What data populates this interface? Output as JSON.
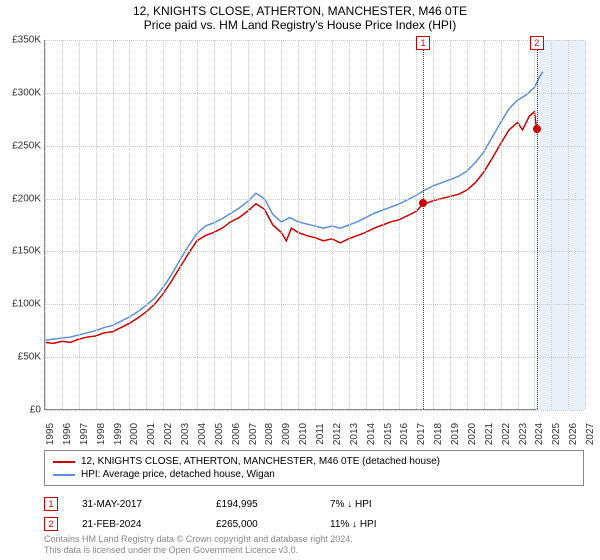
{
  "title": "12, KNIGHTS CLOSE, ATHERTON, MANCHESTER, M46 0TE",
  "subtitle": "Price paid vs. HM Land Registry's House Price Index (HPI)",
  "chart": {
    "type": "line",
    "background_color": "#ffffff",
    "grid_color": "#cccccc",
    "axis_color": "#888888",
    "highlight_band": {
      "x_from": 2024.14,
      "x_to": 2027,
      "color": "#eaf0fa"
    },
    "xlim": [
      1995,
      2027
    ],
    "ylim": [
      0,
      350000
    ],
    "yticks": [
      0,
      50000,
      100000,
      150000,
      200000,
      250000,
      300000,
      350000
    ],
    "ytick_labels": [
      "£0",
      "£50K",
      "£100K",
      "£150K",
      "£200K",
      "£250K",
      "£300K",
      "£350K"
    ],
    "xticks": [
      1995,
      1996,
      1997,
      1998,
      1999,
      2000,
      2001,
      2002,
      2003,
      2004,
      2005,
      2006,
      2007,
      2008,
      2009,
      2010,
      2011,
      2012,
      2013,
      2014,
      2015,
      2016,
      2017,
      2018,
      2019,
      2020,
      2021,
      2022,
      2023,
      2024,
      2025,
      2026,
      2027
    ],
    "series": [
      {
        "name": "12, KNIGHTS CLOSE, ATHERTON, MANCHESTER, M46 0TE (detached house)",
        "color": "#cc0000",
        "line_width": 1.5,
        "data": [
          [
            1995,
            64000
          ],
          [
            1995.5,
            63000
          ],
          [
            1996,
            65000
          ],
          [
            1996.5,
            64000
          ],
          [
            1997,
            67000
          ],
          [
            1997.5,
            69000
          ],
          [
            1998,
            70000
          ],
          [
            1998.5,
            73000
          ],
          [
            1999,
            74000
          ],
          [
            1999.5,
            78000
          ],
          [
            2000,
            82000
          ],
          [
            2000.5,
            87000
          ],
          [
            2001,
            93000
          ],
          [
            2001.5,
            100000
          ],
          [
            2002,
            110000
          ],
          [
            2002.5,
            122000
          ],
          [
            2003,
            135000
          ],
          [
            2003.5,
            148000
          ],
          [
            2004,
            160000
          ],
          [
            2004.5,
            165000
          ],
          [
            2005,
            168000
          ],
          [
            2005.5,
            172000
          ],
          [
            2006,
            178000
          ],
          [
            2006.5,
            182000
          ],
          [
            2007,
            188000
          ],
          [
            2007.5,
            195000
          ],
          [
            2008,
            190000
          ],
          [
            2008.5,
            175000
          ],
          [
            2009,
            168000
          ],
          [
            2009.3,
            160000
          ],
          [
            2009.6,
            172000
          ],
          [
            2010,
            168000
          ],
          [
            2010.5,
            165000
          ],
          [
            2011,
            163000
          ],
          [
            2011.5,
            160000
          ],
          [
            2012,
            162000
          ],
          [
            2012.5,
            158000
          ],
          [
            2013,
            162000
          ],
          [
            2013.5,
            165000
          ],
          [
            2014,
            168000
          ],
          [
            2014.5,
            172000
          ],
          [
            2015,
            175000
          ],
          [
            2015.5,
            178000
          ],
          [
            2016,
            180000
          ],
          [
            2016.5,
            184000
          ],
          [
            2017,
            188000
          ],
          [
            2017.4,
            194995
          ],
          [
            2017.5,
            195000
          ],
          [
            2018,
            198000
          ],
          [
            2018.5,
            200000
          ],
          [
            2019,
            202000
          ],
          [
            2019.5,
            204000
          ],
          [
            2020,
            208000
          ],
          [
            2020.5,
            215000
          ],
          [
            2021,
            225000
          ],
          [
            2021.5,
            238000
          ],
          [
            2022,
            252000
          ],
          [
            2022.5,
            265000
          ],
          [
            2023,
            272000
          ],
          [
            2023.3,
            265000
          ],
          [
            2023.7,
            278000
          ],
          [
            2024,
            282000
          ],
          [
            2024.14,
            265000
          ]
        ]
      },
      {
        "name": "HPI: Average price, detached house, Wigan",
        "color": "#5b8fd6",
        "line_width": 1.5,
        "data": [
          [
            1995,
            66000
          ],
          [
            1995.5,
            67000
          ],
          [
            1996,
            68000
          ],
          [
            1996.5,
            69000
          ],
          [
            1997,
            71000
          ],
          [
            1997.5,
            73000
          ],
          [
            1998,
            75000
          ],
          [
            1998.5,
            78000
          ],
          [
            1999,
            80000
          ],
          [
            1999.5,
            84000
          ],
          [
            2000,
            88000
          ],
          [
            2000.5,
            93000
          ],
          [
            2001,
            99000
          ],
          [
            2001.5,
            106000
          ],
          [
            2002,
            116000
          ],
          [
            2002.5,
            128000
          ],
          [
            2003,
            142000
          ],
          [
            2003.5,
            155000
          ],
          [
            2004,
            167000
          ],
          [
            2004.5,
            174000
          ],
          [
            2005,
            177000
          ],
          [
            2005.5,
            181000
          ],
          [
            2006,
            186000
          ],
          [
            2006.5,
            191000
          ],
          [
            2007,
            197000
          ],
          [
            2007.5,
            205000
          ],
          [
            2008,
            200000
          ],
          [
            2008.5,
            185000
          ],
          [
            2009,
            178000
          ],
          [
            2009.5,
            182000
          ],
          [
            2010,
            178000
          ],
          [
            2010.5,
            176000
          ],
          [
            2011,
            174000
          ],
          [
            2011.5,
            172000
          ],
          [
            2012,
            174000
          ],
          [
            2012.5,
            172000
          ],
          [
            2013,
            175000
          ],
          [
            2013.5,
            178000
          ],
          [
            2014,
            182000
          ],
          [
            2014.5,
            186000
          ],
          [
            2015,
            189000
          ],
          [
            2015.5,
            192000
          ],
          [
            2016,
            195000
          ],
          [
            2016.5,
            199000
          ],
          [
            2017,
            203000
          ],
          [
            2017.5,
            208000
          ],
          [
            2018,
            212000
          ],
          [
            2018.5,
            215000
          ],
          [
            2019,
            218000
          ],
          [
            2019.5,
            221000
          ],
          [
            2020,
            226000
          ],
          [
            2020.5,
            234000
          ],
          [
            2021,
            244000
          ],
          [
            2021.5,
            258000
          ],
          [
            2022,
            272000
          ],
          [
            2022.5,
            285000
          ],
          [
            2023,
            293000
          ],
          [
            2023.5,
            298000
          ],
          [
            2024,
            305000
          ],
          [
            2024.3,
            315000
          ],
          [
            2024.5,
            320000
          ]
        ]
      }
    ],
    "markers": [
      {
        "num": "1",
        "x": 2017.4,
        "y": 194995,
        "color": "#cc0000"
      },
      {
        "num": "2",
        "x": 2024.14,
        "y": 265000,
        "color": "#cc0000"
      }
    ]
  },
  "legend": {
    "items": [
      {
        "color": "#cc0000",
        "label": "12, KNIGHTS CLOSE, ATHERTON, MANCHESTER, M46 0TE (detached house)"
      },
      {
        "color": "#5b8fd6",
        "label": "HPI: Average price, detached house, Wigan"
      }
    ]
  },
  "sales": [
    {
      "num": "1",
      "color": "#cc0000",
      "date": "31-MAY-2017",
      "price": "£194,995",
      "diff": "7% ↓ HPI"
    },
    {
      "num": "2",
      "color": "#cc0000",
      "date": "21-FEB-2024",
      "price": "£265,000",
      "diff": "11% ↓ HPI"
    }
  ],
  "footnote_line1": "Contains HM Land Registry data © Crown copyright and database right 2024.",
  "footnote_line2": "This data is licensed under the Open Government Licence v3.0."
}
